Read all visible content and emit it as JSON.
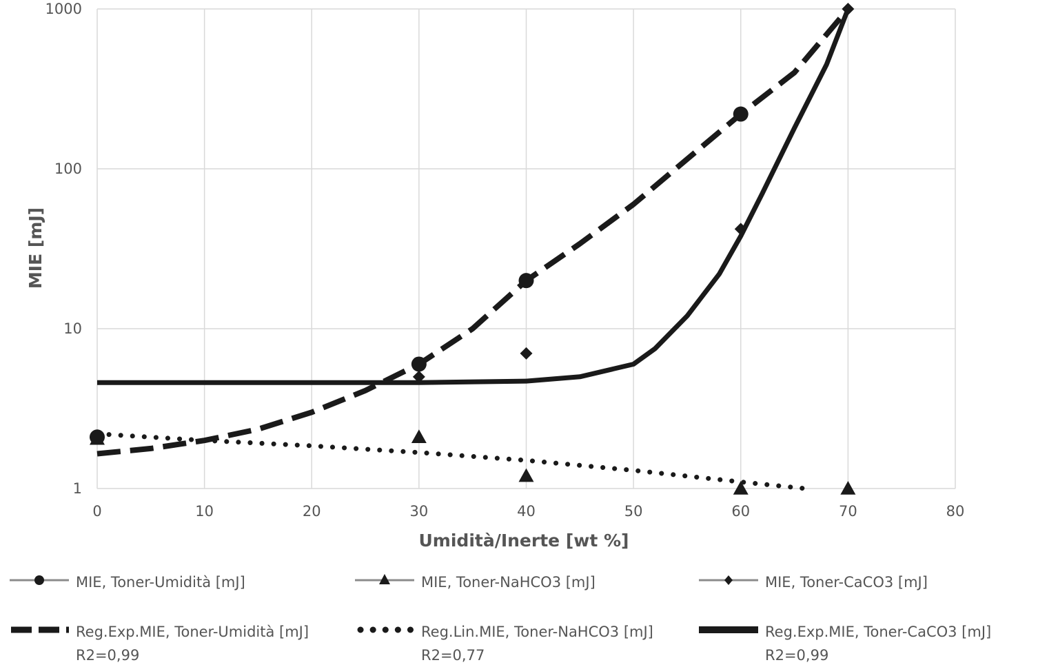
{
  "chart_data": {
    "type": "scatter",
    "title": "",
    "xlabel": "Umidità/Inerte [wt %]",
    "ylabel": "MIE [mJ]",
    "xlim": [
      0,
      80
    ],
    "ylim": [
      1,
      1000
    ],
    "y_scale": "log",
    "grid": true,
    "legend_position": "bottom",
    "x_ticks": [
      "0",
      "10",
      "20",
      "30",
      "40",
      "50",
      "60",
      "70",
      "80"
    ],
    "y_ticks": [
      "1",
      "10",
      "100",
      "1000"
    ],
    "series": [
      {
        "name": "MIE, Toner-Umidità [mJ]",
        "marker": "circle",
        "x": [
          0,
          30,
          40,
          60
        ],
        "y": [
          2.1,
          6,
          20,
          220
        ]
      },
      {
        "name": "MIE, Toner-NaHCO3 [mJ]",
        "marker": "triangle",
        "x": [
          0,
          30,
          40,
          60,
          70
        ],
        "y": [
          2.05,
          2.1,
          1.2,
          1,
          1
        ]
      },
      {
        "name": "MIE, Toner-CaCO3 [mJ]",
        "marker": "diamond",
        "x": [
          0,
          30,
          40,
          60,
          70
        ],
        "y": [
          2.05,
          5,
          7,
          42,
          1000
        ]
      },
      {
        "name": "Reg.Exp.MIE, Toner-Umidità [mJ]",
        "r2": "R2=0,99",
        "style": "dashed",
        "x": [
          0,
          5,
          10,
          15,
          20,
          25,
          30,
          35,
          40,
          45,
          50,
          55,
          60,
          65,
          70
        ],
        "y": [
          1.65,
          1.78,
          2.0,
          2.35,
          3.0,
          4.1,
          6.0,
          10.0,
          20.0,
          34.0,
          60.0,
          115.0,
          220.0,
          400.0,
          1000.0
        ]
      },
      {
        "name": "Reg.Lin.MIE, Toner-NaHCO3 [mJ]",
        "r2": "R2=0,77",
        "style": "dotted",
        "x": [
          0,
          10,
          20,
          30,
          40,
          50,
          60,
          66
        ],
        "y": [
          2.2,
          2.0,
          1.85,
          1.68,
          1.5,
          1.3,
          1.1,
          1.0
        ]
      },
      {
        "name": "Reg.Exp.MIE, Toner-CaCO3 [mJ]",
        "r2": "R2=0,99",
        "style": "solid",
        "x": [
          0,
          10,
          20,
          30,
          40,
          45,
          50,
          52,
          55,
          58,
          60,
          62,
          65,
          68,
          70
        ],
        "y": [
          4.6,
          4.6,
          4.6,
          4.6,
          4.7,
          5.0,
          6.0,
          7.5,
          12.0,
          22.0,
          38.0,
          70.0,
          180.0,
          450.0,
          1000.0
        ]
      }
    ]
  },
  "colors": {
    "grid": "#d9d9d9",
    "axis_text": "#555555",
    "series": "#1a1a1a",
    "marker_line": "#8c8c8c"
  }
}
